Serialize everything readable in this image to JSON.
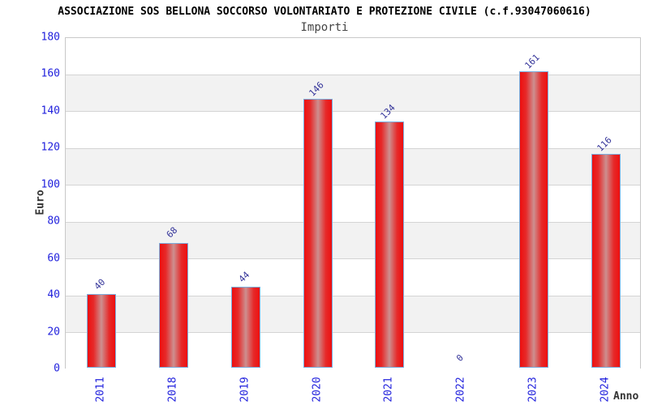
{
  "title": "ASSOCIAZIONE SOS BELLONA SOCCORSO VOLONTARIATO E PROTEZIONE CIVILE (c.f.93047060616)",
  "subtitle": "Importi",
  "chart_data": {
    "type": "bar",
    "title": "ASSOCIAZIONE SOS BELLONA SOCCORSO VOLONTARIATO E PROTEZIONE CIVILE (c.f.93047060616)",
    "subtitle": "Importi",
    "categories": [
      "2011",
      "2018",
      "2019",
      "2020",
      "2021",
      "2022",
      "2023",
      "2024"
    ],
    "values": [
      40,
      68,
      44,
      146,
      134,
      0,
      161,
      116
    ],
    "xlabel": "Anno",
    "ylabel": "Euro",
    "ylim": [
      0,
      180
    ],
    "y_ticks": [
      0,
      20,
      40,
      60,
      80,
      100,
      120,
      140,
      160,
      180
    ],
    "grid": true,
    "legend": "none",
    "band_fill": "alternating horizontal white/gray stripes every 20 units",
    "colors": {
      "bar_edge": "#ee0f0f",
      "bar_center": "#cd8f8f",
      "bar_border": "#7aaede",
      "axis_tick_label": "#2222dd",
      "value_label": "#333399",
      "band_gray": "#f2f2f2",
      "gridline": "#d4d4d4",
      "plot_border": "#c8c8c8",
      "title_color": "#000000",
      "subtitle_color": "#444444",
      "axis_title_color": "#333333"
    }
  }
}
